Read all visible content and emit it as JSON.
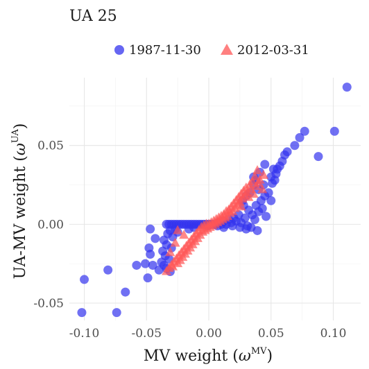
{
  "chart_data": {
    "type": "scatter",
    "title": "UA 25",
    "xlabel_main": "MV weight (",
    "xlabel_sym": "ω",
    "xlabel_sup": "MV",
    "xlabel_close": ")",
    "ylabel_main": "UA-MV weight (",
    "ylabel_sym": "ω",
    "ylabel_sup": "UA",
    "ylabel_close": ")",
    "xlim": [
      -0.112,
      0.122
    ],
    "ylim": [
      -0.061,
      0.093
    ],
    "x_ticks": [
      -0.1,
      -0.05,
      0.0,
      0.05,
      0.1
    ],
    "x_tick_labels": [
      "-0.10",
      "-0.05",
      "0.00",
      "0.05",
      "0.10"
    ],
    "y_ticks": [
      -0.05,
      0.0,
      0.05
    ],
    "y_tick_labels": [
      "-0.05",
      "0.00",
      "0.05"
    ],
    "grid": true,
    "legend_position": "top",
    "series": [
      {
        "name": "1987-11-30",
        "marker": "circle",
        "color": "#3333ee",
        "points": [
          [
            0.111,
            0.087
          ],
          [
            0.101,
            0.059
          ],
          [
            0.088,
            0.043
          ],
          [
            0.077,
            0.059
          ],
          [
            0.073,
            0.055
          ],
          [
            0.069,
            0.05
          ],
          [
            0.063,
            0.046
          ],
          [
            0.061,
            0.044
          ],
          [
            0.059,
            0.04
          ],
          [
            0.057,
            0.037
          ],
          [
            0.055,
            0.035
          ],
          [
            0.052,
            0.035
          ],
          [
            0.054,
            0.032
          ],
          [
            0.05,
            0.03
          ],
          [
            0.051,
            0.026
          ],
          [
            0.048,
            0.02
          ],
          [
            0.045,
            0.018
          ],
          [
            0.042,
            0.015
          ],
          [
            0.04,
            0.022
          ],
          [
            0.043,
            0.01
          ],
          [
            0.038,
            0.028
          ],
          [
            0.036,
            0.025
          ],
          [
            0.033,
            0.02
          ],
          [
            0.03,
            0.018
          ],
          [
            0.046,
            0.005
          ],
          [
            0.04,
            0.008
          ],
          [
            0.037,
            0.003
          ],
          [
            0.035,
            0.006
          ],
          [
            0.032,
            0.009
          ],
          [
            0.028,
            0.012
          ],
          [
            0.034,
            -0.002
          ],
          [
            0.031,
            -0.001
          ],
          [
            0.029,
            0.004
          ],
          [
            0.026,
            0.001
          ],
          [
            0.024,
            0.006
          ],
          [
            0.022,
            0.002
          ],
          [
            0.02,
            0.004
          ],
          [
            0.018,
            0.001
          ],
          [
            0.016,
            0.003
          ],
          [
            0.014,
            0.0
          ],
          [
            0.012,
            0.002
          ],
          [
            0.01,
            0.0
          ],
          [
            0.008,
            0.001
          ],
          [
            0.006,
            0.0
          ],
          [
            0.004,
            0.0
          ],
          [
            0.002,
            0.0
          ],
          [
            0.0,
            0.0
          ],
          [
            -0.002,
            0.0
          ],
          [
            -0.004,
            0.0
          ],
          [
            -0.006,
            0.0
          ],
          [
            -0.008,
            0.0
          ],
          [
            -0.01,
            0.0
          ],
          [
            -0.012,
            0.0
          ],
          [
            -0.014,
            0.0
          ],
          [
            -0.016,
            0.0
          ],
          [
            -0.018,
            0.0
          ],
          [
            -0.02,
            0.0
          ],
          [
            -0.022,
            0.0
          ],
          [
            -0.024,
            0.0
          ],
          [
            -0.026,
            0.0
          ],
          [
            -0.028,
            0.0
          ],
          [
            -0.03,
            0.0
          ],
          [
            -0.032,
            0.0
          ],
          [
            -0.034,
            0.0
          ],
          [
            -0.027,
            -0.003
          ],
          [
            -0.025,
            -0.005
          ],
          [
            -0.031,
            -0.004
          ],
          [
            -0.029,
            -0.008
          ],
          [
            -0.033,
            -0.006
          ],
          [
            -0.036,
            -0.01
          ],
          [
            -0.034,
            -0.013
          ],
          [
            -0.03,
            -0.015
          ],
          [
            -0.037,
            -0.017
          ],
          [
            -0.035,
            -0.02
          ],
          [
            -0.032,
            -0.022
          ],
          [
            -0.038,
            -0.024
          ],
          [
            -0.036,
            -0.026
          ],
          [
            -0.034,
            -0.028
          ],
          [
            -0.031,
            -0.03
          ],
          [
            -0.04,
            -0.029
          ],
          [
            -0.045,
            -0.026
          ],
          [
            -0.051,
            -0.025
          ],
          [
            -0.047,
            -0.019
          ],
          [
            -0.048,
            -0.015
          ],
          [
            -0.043,
            -0.009
          ],
          [
            -0.047,
            -0.003
          ],
          [
            -0.049,
            -0.034
          ],
          [
            -0.058,
            -0.026
          ],
          [
            -0.067,
            -0.043
          ],
          [
            -0.081,
            -0.029
          ],
          [
            -0.1,
            -0.035
          ],
          [
            -0.102,
            -0.056
          ],
          [
            -0.074,
            -0.056
          ],
          [
            0.025,
            -0.002
          ],
          [
            0.019,
            -0.001
          ],
          [
            0.012,
            -0.002
          ],
          [
            0.007,
            -0.001
          ],
          [
            -0.001,
            -0.001
          ],
          [
            -0.012,
            -0.002
          ],
          [
            -0.016,
            -0.003
          ],
          [
            0.027,
            0.015
          ],
          [
            0.038,
            0.012
          ],
          [
            0.044,
            0.025
          ],
          [
            0.05,
            0.015
          ],
          [
            0.039,
            -0.004
          ],
          [
            0.036,
            0.03
          ],
          [
            0.041,
            0.033
          ],
          [
            0.053,
            0.028
          ],
          [
            0.045,
            0.038
          ],
          [
            0.03,
            -0.003
          ]
        ]
      },
      {
        "name": "2012-03-31",
        "marker": "triangle",
        "color": "#ff5555",
        "points": [
          [
            0.039,
            0.034
          ],
          [
            0.044,
            0.031
          ],
          [
            0.037,
            0.03
          ],
          [
            0.041,
            0.028
          ],
          [
            0.035,
            0.027
          ],
          [
            0.033,
            0.025
          ],
          [
            0.038,
            0.024
          ],
          [
            0.03,
            0.023
          ],
          [
            0.034,
            0.022
          ],
          [
            0.028,
            0.021
          ],
          [
            0.031,
            0.02
          ],
          [
            0.026,
            0.019
          ],
          [
            0.029,
            0.018
          ],
          [
            0.024,
            0.017
          ],
          [
            0.027,
            0.016
          ],
          [
            0.022,
            0.015
          ],
          [
            0.025,
            0.014
          ],
          [
            0.02,
            0.013
          ],
          [
            0.023,
            0.012
          ],
          [
            0.018,
            0.011
          ],
          [
            0.021,
            0.01
          ],
          [
            0.016,
            0.009
          ],
          [
            0.019,
            0.008
          ],
          [
            0.014,
            0.008
          ],
          [
            0.017,
            0.007
          ],
          [
            0.012,
            0.006
          ],
          [
            0.015,
            0.005
          ],
          [
            0.01,
            0.005
          ],
          [
            0.013,
            0.004
          ],
          [
            0.008,
            0.004
          ],
          [
            0.011,
            0.003
          ],
          [
            0.006,
            0.003
          ],
          [
            0.009,
            0.002
          ],
          [
            0.004,
            0.002
          ],
          [
            0.007,
            0.001
          ],
          [
            0.002,
            0.001
          ],
          [
            0.005,
            0.0
          ],
          [
            0.0,
            0.0
          ],
          [
            0.003,
            -0.001
          ],
          [
            -0.002,
            0.0
          ],
          [
            0.001,
            -0.002
          ],
          [
            -0.004,
            -0.001
          ],
          [
            -0.001,
            -0.003
          ],
          [
            -0.006,
            -0.002
          ],
          [
            -0.003,
            -0.004
          ],
          [
            -0.008,
            -0.004
          ],
          [
            -0.005,
            -0.005
          ],
          [
            -0.01,
            -0.006
          ],
          [
            -0.007,
            -0.007
          ],
          [
            -0.012,
            -0.008
          ],
          [
            -0.009,
            -0.009
          ],
          [
            -0.014,
            -0.01
          ],
          [
            -0.011,
            -0.011
          ],
          [
            -0.016,
            -0.012
          ],
          [
            -0.013,
            -0.013
          ],
          [
            -0.018,
            -0.014
          ],
          [
            -0.015,
            -0.015
          ],
          [
            -0.02,
            -0.016
          ],
          [
            -0.017,
            -0.017
          ],
          [
            -0.022,
            -0.018
          ],
          [
            -0.019,
            -0.019
          ],
          [
            -0.024,
            -0.02
          ],
          [
            -0.021,
            -0.021
          ],
          [
            -0.026,
            -0.022
          ],
          [
            -0.023,
            -0.023
          ],
          [
            -0.028,
            -0.024
          ],
          [
            -0.025,
            -0.025
          ],
          [
            -0.03,
            -0.026
          ],
          [
            -0.032,
            -0.028
          ],
          [
            -0.029,
            -0.027
          ],
          [
            -0.034,
            -0.03
          ],
          [
            -0.027,
            -0.012
          ],
          [
            -0.025,
            -0.004
          ],
          [
            -0.02,
            -0.007
          ],
          [
            -0.031,
            -0.018
          ],
          [
            0.032,
            0.017
          ],
          [
            0.036,
            0.019
          ],
          [
            0.026,
            0.011
          ],
          [
            0.04,
            0.026
          ],
          [
            0.043,
            0.022
          ]
        ]
      }
    ]
  }
}
